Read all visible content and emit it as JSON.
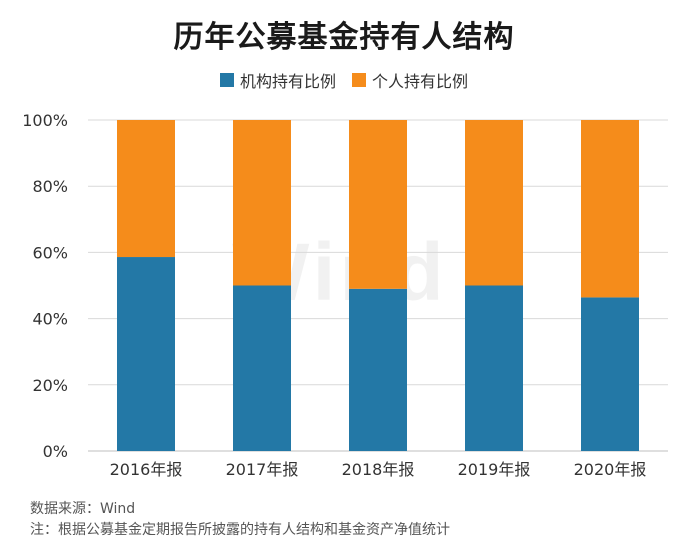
{
  "chart_data": {
    "type": "bar",
    "stacked": true,
    "title": "历年公募基金持有人结构",
    "categories": [
      "2016年报",
      "2017年报",
      "2018年报",
      "2019年报",
      "2020年报"
    ],
    "series": [
      {
        "name": "机构持有比例",
        "color": "#2378a6",
        "values": [
          58.6,
          50.0,
          49.0,
          50.0,
          46.4
        ]
      },
      {
        "name": "个人持有比例",
        "color": "#f58c1b",
        "values": [
          41.4,
          50.0,
          51.0,
          50.0,
          53.6
        ]
      }
    ],
    "ylim": [
      0,
      100
    ],
    "yticks": [
      0,
      20,
      40,
      60,
      80,
      100
    ],
    "ytick_labels": [
      "0%",
      "20%",
      "40%",
      "60%",
      "80%",
      "100%"
    ],
    "legend_position": "top",
    "grid": true
  },
  "watermark": "Wind",
  "footer": {
    "source": "数据来源：Wind",
    "note": "注：根据公募基金定期报告所披露的持有人结构和基金资产净值统计"
  }
}
